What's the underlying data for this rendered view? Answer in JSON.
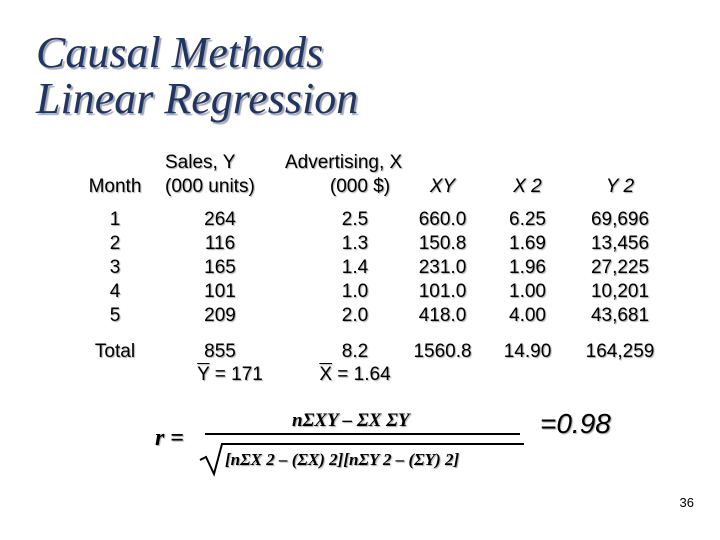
{
  "title": {
    "line1": "Causal Methods",
    "line2": "Linear Regression"
  },
  "table": {
    "headers": {
      "month": "Month",
      "sales_line1": "Sales, Y",
      "sales_line2": "(000 units)",
      "adv_line1": "Advertising, X",
      "adv_line2": "(000 $)",
      "xy": "XY",
      "x2": "X 2",
      "y2": "Y 2"
    },
    "columns": {
      "month": [
        "1",
        "2",
        "3",
        "4",
        "5"
      ],
      "sales": [
        "264",
        "116",
        "165",
        "101",
        "209"
      ],
      "advertising": [
        "2.5",
        "1.3",
        "1.4",
        "1.0",
        "2.0"
      ],
      "xy": [
        "660.0",
        "150.8",
        "231.0",
        "101.0",
        "418.0"
      ],
      "x2": [
        "6.25",
        "1.69",
        "1.96",
        "1.00",
        "4.00"
      ],
      "y2": [
        "69,696",
        "13,456",
        "27,225",
        "10,201",
        "43,681"
      ]
    },
    "totals": {
      "label": "Total",
      "sales": "855",
      "advertising": "8.2",
      "xy": "1560.8",
      "x2": "14.90",
      "y2": "164,259"
    },
    "means": {
      "y_symbol": "Y",
      "y_value": "= 171",
      "x_symbol": "X",
      "x_value": "= 1.64"
    }
  },
  "formula": {
    "lhs": "r",
    "equals": "=",
    "numerator": "nΣXY – ΣX ΣY",
    "denominator": "[nΣX 2 – (ΣX) 2][nΣY 2 – (ΣY) 2]",
    "result": "=0.98"
  },
  "page_number": "36"
}
